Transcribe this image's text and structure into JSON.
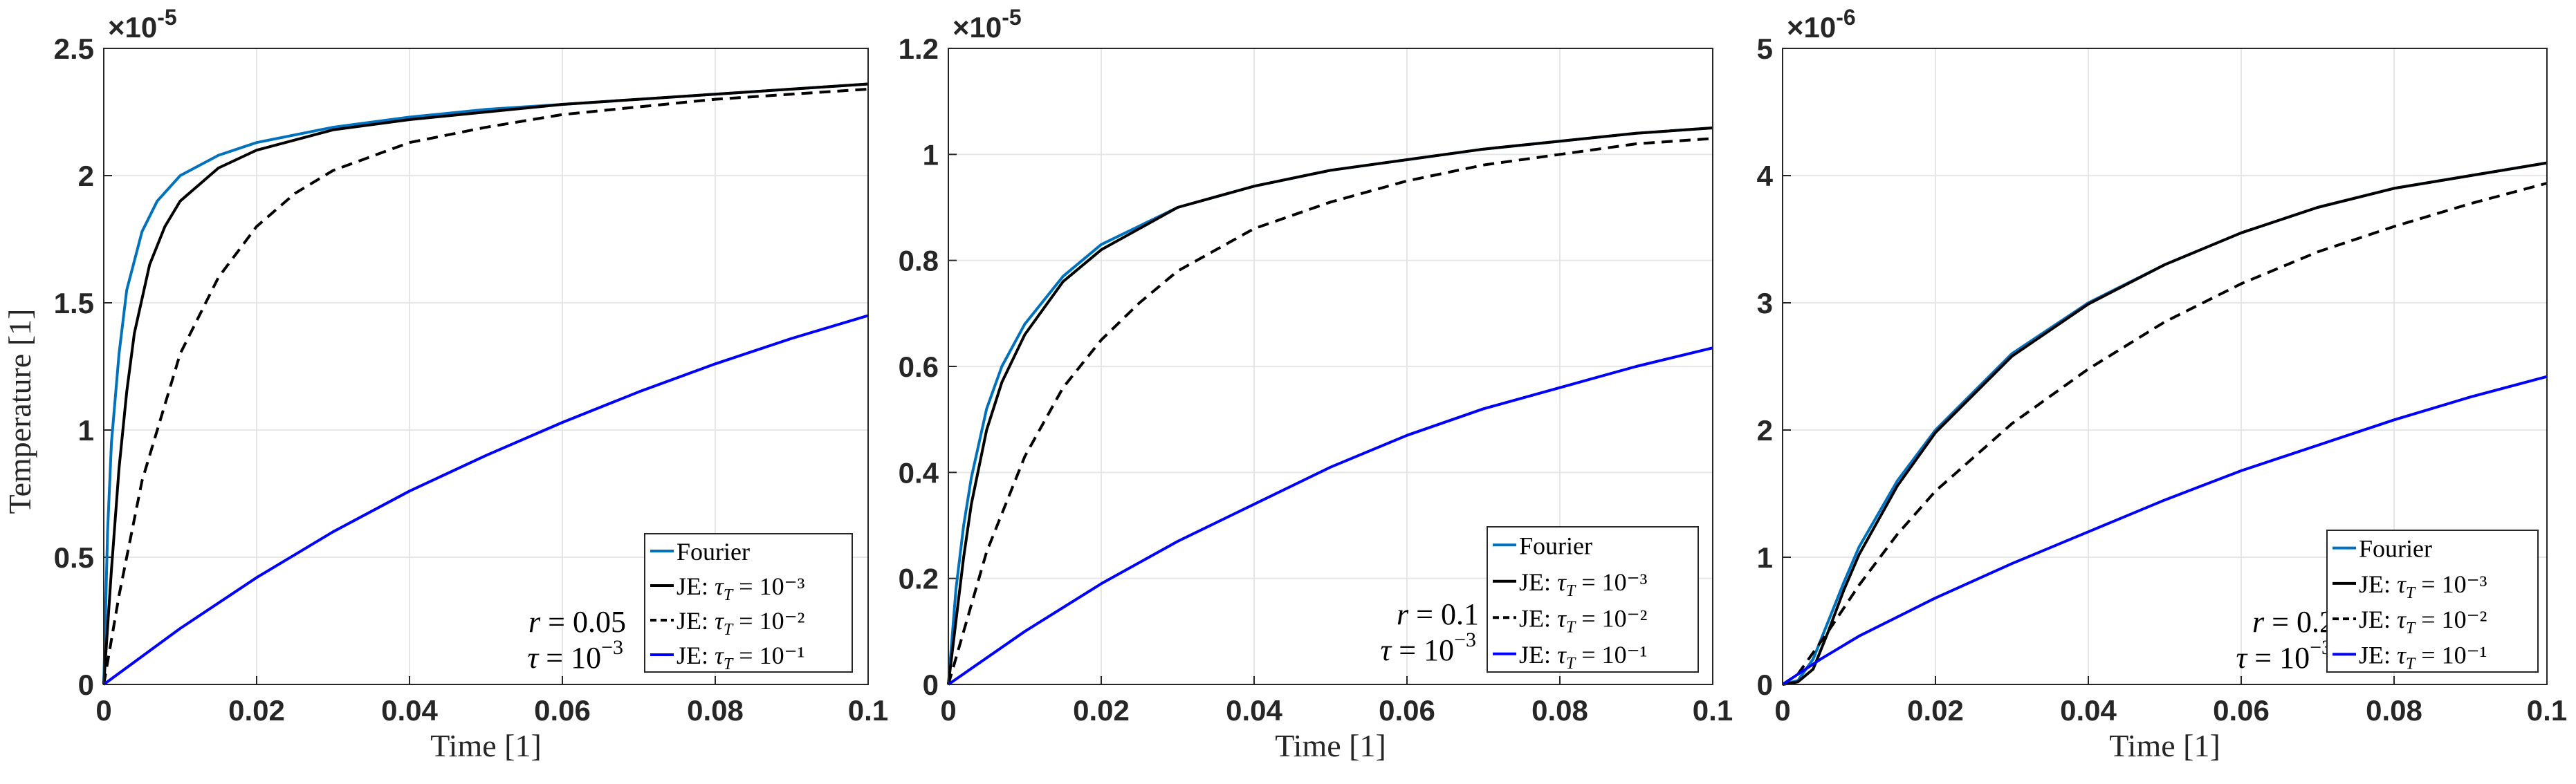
{
  "figure": {
    "y_axis_label": "Temperature [1]",
    "x_axis_label": "Time [1]",
    "legend_labels": [
      {
        "main": "Fourier",
        "tau": ""
      },
      {
        "main": "JE: ",
        "tau": "10⁻³"
      },
      {
        "main": "JE: ",
        "tau": "10⁻²"
      },
      {
        "main": "JE: ",
        "tau": "10⁻¹"
      }
    ],
    "legend_tau_symbol": "τ",
    "legend_tau_sub": "T",
    "colors": {
      "fourier": "#0072BD",
      "je_1e3": "#000000",
      "je_1e2": "#000000",
      "je_1e1": "#0000FF"
    }
  },
  "chart_data": [
    {
      "type": "line",
      "panel": "left",
      "annotation_r": "0.05",
      "annotation_tau": "10",
      "annotation_tau_exp": "−3",
      "exponent_label": "×10",
      "exponent_power": "-5",
      "xlabel": "Time [1]",
      "ylabel": "Temperature [1]",
      "xlim": [
        0,
        0.1
      ],
      "ylim": [
        0,
        2.5
      ],
      "xticks": [
        "0",
        "0.02",
        "0.04",
        "0.06",
        "0.08",
        "0.1"
      ],
      "yticks": [
        "0",
        "0.5",
        "1",
        "1.5",
        "2",
        "2.5"
      ],
      "grid": true,
      "legend_position": "bottom-right",
      "series": [
        {
          "name": "Fourier",
          "style": "solid",
          "color": "#0072BD",
          "x": [
            0,
            0.0005,
            0.001,
            0.002,
            0.003,
            0.005,
            0.007,
            0.01,
            0.015,
            0.02,
            0.03,
            0.04,
            0.05,
            0.06,
            0.07,
            0.08,
            0.09,
            0.1
          ],
          "y": [
            0,
            0.6,
            0.95,
            1.3,
            1.55,
            1.78,
            1.9,
            2.0,
            2.08,
            2.13,
            2.19,
            2.23,
            2.26,
            2.28,
            2.3,
            2.32,
            2.34,
            2.36
          ]
        },
        {
          "name": "JE: τ_T = 10^-3",
          "style": "solid",
          "color": "#000000",
          "x": [
            0,
            0.001,
            0.002,
            0.003,
            0.004,
            0.006,
            0.008,
            0.01,
            0.015,
            0.02,
            0.03,
            0.04,
            0.05,
            0.06,
            0.07,
            0.08,
            0.09,
            0.1
          ],
          "y": [
            0,
            0.45,
            0.85,
            1.15,
            1.38,
            1.65,
            1.8,
            1.9,
            2.03,
            2.1,
            2.18,
            2.22,
            2.25,
            2.28,
            2.3,
            2.32,
            2.34,
            2.36
          ]
        },
        {
          "name": "JE: τ_T = 10^-2",
          "style": "dashed",
          "color": "#000000",
          "x": [
            0,
            0.002,
            0.005,
            0.01,
            0.015,
            0.02,
            0.025,
            0.03,
            0.04,
            0.05,
            0.06,
            0.07,
            0.08,
            0.09,
            0.1
          ],
          "y": [
            0,
            0.35,
            0.8,
            1.3,
            1.6,
            1.8,
            1.93,
            2.02,
            2.13,
            2.19,
            2.24,
            2.27,
            2.3,
            2.32,
            2.34
          ]
        },
        {
          "name": "JE: τ_T = 10^-1",
          "style": "solid",
          "color": "#0000FF",
          "x": [
            0,
            0.01,
            0.02,
            0.03,
            0.04,
            0.05,
            0.06,
            0.07,
            0.08,
            0.09,
            0.1
          ],
          "y": [
            0,
            0.22,
            0.42,
            0.6,
            0.76,
            0.9,
            1.03,
            1.15,
            1.26,
            1.36,
            1.45
          ]
        }
      ]
    },
    {
      "type": "line",
      "panel": "middle",
      "annotation_r": "0.1",
      "annotation_tau": "10",
      "annotation_tau_exp": "−3",
      "exponent_label": "×10",
      "exponent_power": "-5",
      "xlabel": "Time [1]",
      "ylabel": "",
      "xlim": [
        0,
        0.1
      ],
      "ylim": [
        0,
        1.2
      ],
      "xticks": [
        "0",
        "0.02",
        "0.04",
        "0.06",
        "0.08",
        "0.1"
      ],
      "yticks": [
        "0",
        "0.2",
        "0.4",
        "0.6",
        "0.8",
        "1",
        "1.2"
      ],
      "grid": true,
      "legend_position": "bottom-right",
      "series": [
        {
          "name": "Fourier",
          "style": "solid",
          "color": "#0072BD",
          "x": [
            0,
            0.001,
            0.002,
            0.003,
            0.005,
            0.007,
            0.01,
            0.015,
            0.02,
            0.03,
            0.04,
            0.05,
            0.06,
            0.07,
            0.08,
            0.09,
            0.1
          ],
          "y": [
            0,
            0.18,
            0.3,
            0.39,
            0.52,
            0.6,
            0.68,
            0.77,
            0.83,
            0.9,
            0.94,
            0.97,
            0.99,
            1.01,
            1.025,
            1.04,
            1.05
          ]
        },
        {
          "name": "JE: τ_T = 10^-3",
          "style": "solid",
          "color": "#000000",
          "x": [
            0,
            0.001,
            0.002,
            0.003,
            0.005,
            0.007,
            0.01,
            0.015,
            0.02,
            0.03,
            0.04,
            0.05,
            0.06,
            0.07,
            0.08,
            0.09,
            0.1
          ],
          "y": [
            0,
            0.12,
            0.24,
            0.34,
            0.48,
            0.57,
            0.66,
            0.76,
            0.82,
            0.9,
            0.94,
            0.97,
            0.99,
            1.01,
            1.025,
            1.04,
            1.05
          ]
        },
        {
          "name": "JE: τ_T = 10^-2",
          "style": "dashed",
          "color": "#000000",
          "x": [
            0,
            0.002,
            0.005,
            0.01,
            0.015,
            0.02,
            0.025,
            0.03,
            0.04,
            0.05,
            0.06,
            0.07,
            0.08,
            0.09,
            0.1
          ],
          "y": [
            0,
            0.1,
            0.25,
            0.43,
            0.56,
            0.65,
            0.72,
            0.78,
            0.86,
            0.91,
            0.95,
            0.98,
            1.0,
            1.02,
            1.03
          ]
        },
        {
          "name": "JE: τ_T = 10^-1",
          "style": "solid",
          "color": "#0000FF",
          "x": [
            0,
            0.01,
            0.02,
            0.03,
            0.04,
            0.05,
            0.06,
            0.07,
            0.08,
            0.09,
            0.1
          ],
          "y": [
            0,
            0.1,
            0.19,
            0.27,
            0.34,
            0.41,
            0.47,
            0.52,
            0.56,
            0.6,
            0.635
          ]
        }
      ]
    },
    {
      "type": "line",
      "panel": "right",
      "annotation_r": "0.2",
      "annotation_tau": "10",
      "annotation_tau_exp": "−3",
      "exponent_label": "×10",
      "exponent_power": "-6",
      "xlabel": "Time [1]",
      "ylabel": "",
      "xlim": [
        0,
        0.1
      ],
      "ylim": [
        0,
        5
      ],
      "xticks": [
        "0",
        "0.02",
        "0.04",
        "0.06",
        "0.08",
        "0.1"
      ],
      "yticks": [
        "0",
        "1",
        "2",
        "3",
        "4",
        "5"
      ],
      "grid": true,
      "legend_position": "bottom-right",
      "series": [
        {
          "name": "Fourier",
          "style": "solid",
          "color": "#0072BD",
          "x": [
            0,
            0.002,
            0.004,
            0.006,
            0.008,
            0.01,
            0.015,
            0.02,
            0.03,
            0.04,
            0.05,
            0.06,
            0.07,
            0.08,
            0.09,
            0.1
          ],
          "y": [
            0,
            0.03,
            0.2,
            0.5,
            0.8,
            1.08,
            1.6,
            2.0,
            2.6,
            3.0,
            3.3,
            3.55,
            3.75,
            3.9,
            4.0,
            4.1
          ]
        },
        {
          "name": "JE: τ_T = 10^-3",
          "style": "solid",
          "color": "#000000",
          "x": [
            0,
            0.002,
            0.004,
            0.006,
            0.008,
            0.01,
            0.015,
            0.02,
            0.03,
            0.04,
            0.05,
            0.06,
            0.07,
            0.08,
            0.09,
            0.1
          ],
          "y": [
            0,
            0.02,
            0.12,
            0.42,
            0.74,
            1.02,
            1.56,
            1.98,
            2.58,
            2.99,
            3.3,
            3.55,
            3.75,
            3.9,
            4.0,
            4.1
          ]
        },
        {
          "name": "JE: τ_T = 10^-2",
          "style": "dashed",
          "color": "#000000",
          "x": [
            0,
            0.002,
            0.004,
            0.006,
            0.008,
            0.01,
            0.015,
            0.02,
            0.03,
            0.04,
            0.05,
            0.06,
            0.07,
            0.08,
            0.09,
            0.1
          ],
          "y": [
            0,
            0.08,
            0.25,
            0.42,
            0.6,
            0.78,
            1.18,
            1.52,
            2.05,
            2.48,
            2.85,
            3.15,
            3.4,
            3.6,
            3.78,
            3.94
          ]
        },
        {
          "name": "JE: τ_T = 10^-1",
          "style": "solid",
          "color": "#0000FF",
          "x": [
            0,
            0.005,
            0.01,
            0.02,
            0.03,
            0.04,
            0.05,
            0.06,
            0.07,
            0.08,
            0.09,
            0.1
          ],
          "y": [
            0,
            0.2,
            0.38,
            0.68,
            0.95,
            1.2,
            1.45,
            1.68,
            1.88,
            2.08,
            2.26,
            2.42
          ]
        }
      ]
    }
  ]
}
